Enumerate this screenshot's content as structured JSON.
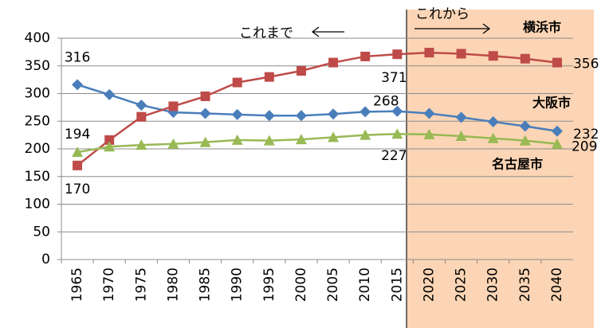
{
  "chart_data": {
    "type": "line",
    "categories": [
      "1965",
      "1970",
      "1975",
      "1980",
      "1985",
      "1990",
      "1995",
      "2000",
      "2005",
      "2010",
      "2015",
      "2020",
      "2025",
      "2030",
      "2035",
      "2040"
    ],
    "series": [
      {
        "name": "大阪市",
        "color": "#4a7ebb",
        "marker": "diamond",
        "values": [
          316,
          298,
          279,
          266,
          264,
          262,
          260,
          260,
          263,
          267,
          268,
          264,
          257,
          249,
          241,
          232
        ],
        "value_labels": [
          "316",
          null,
          null,
          null,
          null,
          null,
          null,
          null,
          null,
          null,
          "268",
          null,
          null,
          null,
          null,
          "232"
        ]
      },
      {
        "name": "横浜市",
        "color": "#be4b48",
        "marker": "square",
        "values": [
          170,
          216,
          258,
          277,
          295,
          320,
          330,
          341,
          356,
          367,
          371,
          374,
          372,
          368,
          363,
          356
        ],
        "value_labels": [
          "170",
          null,
          null,
          null,
          null,
          null,
          null,
          null,
          null,
          null,
          "371",
          null,
          null,
          null,
          null,
          "356"
        ]
      },
      {
        "name": "名古屋市",
        "color": "#98b954",
        "marker": "triangle",
        "values": [
          194,
          204,
          207,
          209,
          212,
          216,
          215,
          217,
          221,
          225,
          227,
          226,
          223,
          219,
          215,
          209
        ],
        "value_labels": [
          "194",
          null,
          null,
          null,
          null,
          null,
          null,
          null,
          null,
          null,
          "227",
          null,
          null,
          null,
          null,
          "209"
        ]
      }
    ],
    "annotations": [
      "これまで",
      "これから"
    ],
    "ylim": [
      0,
      400
    ],
    "yticks": [
      0,
      50,
      100,
      150,
      200,
      250,
      300,
      350,
      400
    ],
    "grid": true
  }
}
